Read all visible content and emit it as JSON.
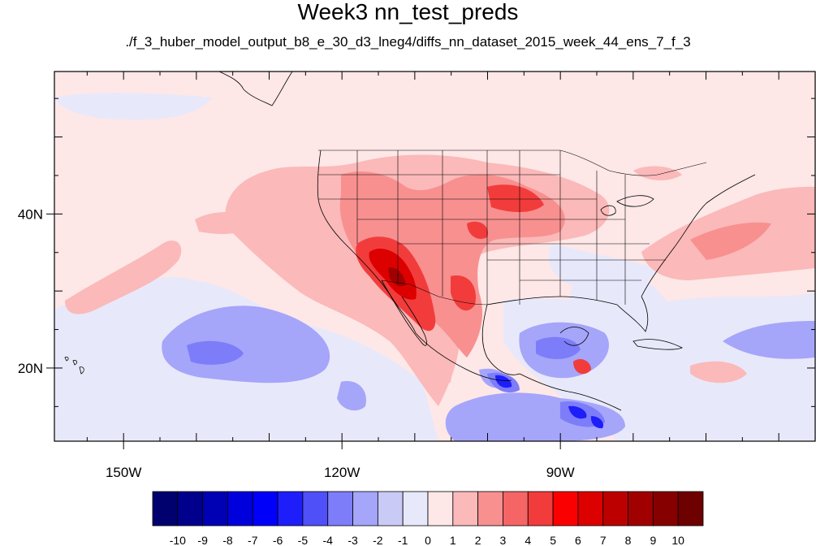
{
  "title": "Week3 nn_test_preds",
  "subtitle": "./f_3_huber_model_output_b8_e_30_d3_lneg4/diffs_nn_dataset_2015_week_44_ens_7_f_3",
  "lon_range": [
    -159.5,
    -55.0
  ],
  "lat_range": [
    10.5,
    58.5
  ],
  "lon_ticks": [
    {
      "lon": -150,
      "label": "150W"
    },
    {
      "lon": -120,
      "label": "120W"
    },
    {
      "lon": -90,
      "label": "90W"
    }
  ],
  "lat_ticks": [
    {
      "lat": 40,
      "label": "40N"
    },
    {
      "lat": 20,
      "label": "20N"
    }
  ],
  "colorbar": {
    "colors": [
      "#00006e",
      "#00008c",
      "#0000b4",
      "#0000dc",
      "#0000fa",
      "#1e1efa",
      "#5050f8",
      "#7d7dfa",
      "#a5a5fa",
      "#cacaf7",
      "#e8e8fb",
      "#fde7e7",
      "#fbb9b9",
      "#f89090",
      "#f56565",
      "#f23c3c",
      "#fb0000",
      "#dc0000",
      "#bc0000",
      "#a00000",
      "#870000",
      "#6e0000"
    ],
    "labels": [
      "-10",
      "-9",
      "-8",
      "-7",
      "-6",
      "-5",
      "-4",
      "-3",
      "-2",
      "-1",
      "0",
      "1",
      "2",
      "3",
      "4",
      "5",
      "6",
      "7",
      "8",
      "9",
      "10"
    ]
  }
}
